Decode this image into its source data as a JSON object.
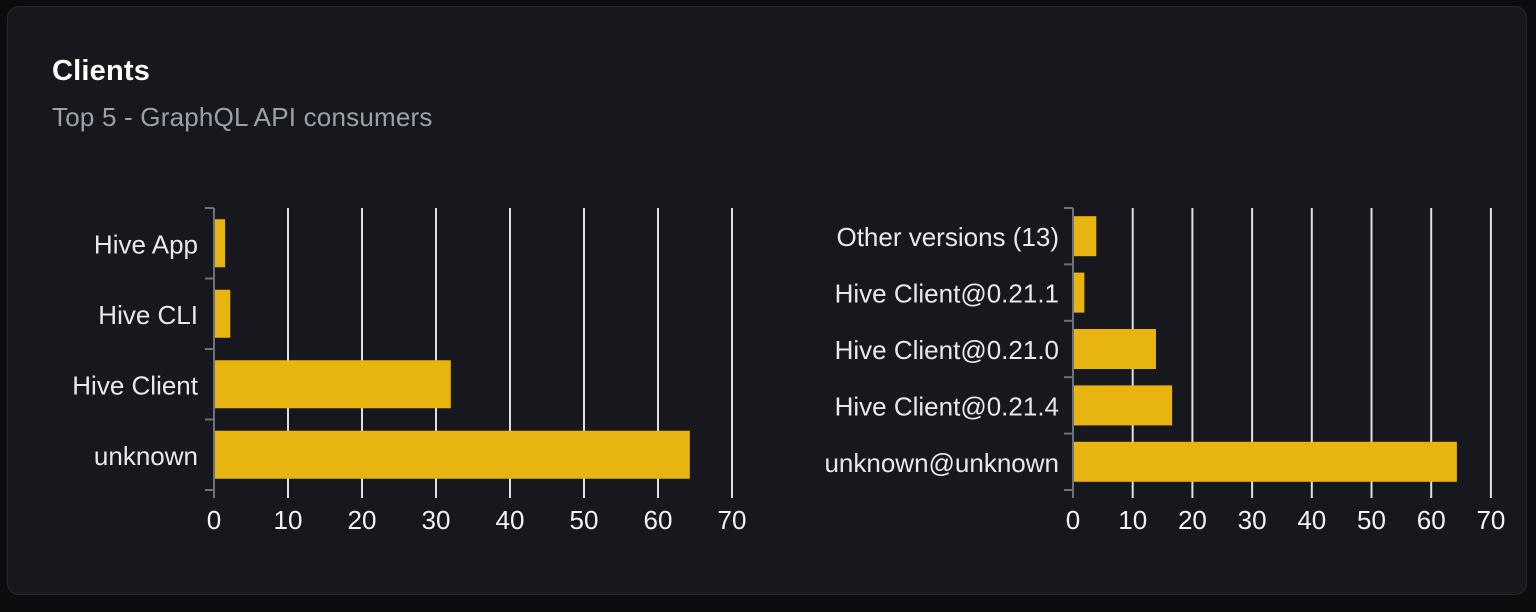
{
  "page": {
    "title": "Clients",
    "subtitle": "Top 5 - GraphQL API consumers"
  },
  "colors": {
    "page_bg": "#0b0c0e",
    "card_bg": "#16181d",
    "card_border": "#262a30",
    "title_text": "#ffffff",
    "subtitle_text": "#9aa1ab",
    "bar": "#e8b40f",
    "gridline": "#dde1e8",
    "axis": "#6e7178",
    "category_label": "#e8e9eb",
    "tick_label": "#f2f3f5"
  },
  "chart_data": [
    {
      "id": "clients-by-name",
      "type": "bar",
      "orientation": "horizontal",
      "categories": [
        "Hive App",
        "Hive CLI",
        "Hive Client",
        "unknown"
      ],
      "values": [
        1.5,
        2.2,
        32,
        64.3
      ],
      "xlim": [
        0,
        70
      ],
      "x_ticks": [
        0,
        10,
        20,
        30,
        40,
        50,
        60,
        70
      ],
      "grid": true,
      "legend": false
    },
    {
      "id": "clients-by-version",
      "type": "bar",
      "orientation": "horizontal",
      "categories": [
        "Other versions (13)",
        "Hive Client@0.21.1",
        "Hive Client@0.21.0",
        "Hive Client@0.21.4",
        "unknown@unknown"
      ],
      "values": [
        3.9,
        1.9,
        13.9,
        16.6,
        64.3
      ],
      "xlim": [
        0,
        70
      ],
      "x_ticks": [
        0,
        10,
        20,
        30,
        40,
        50,
        60,
        70
      ],
      "grid": true,
      "legend": false
    }
  ]
}
